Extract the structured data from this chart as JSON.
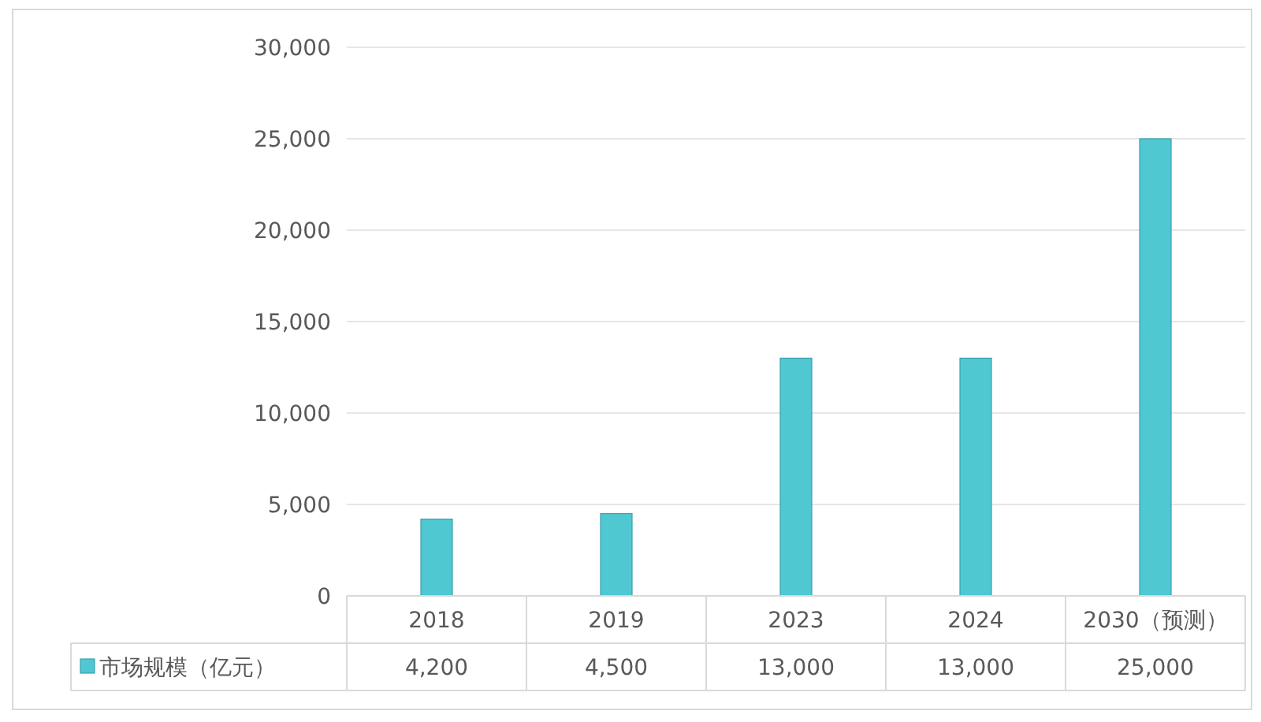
{
  "chart_data": {
    "type": "bar",
    "categories": [
      "2018",
      "2019",
      "2023",
      "2024",
      "2030（预测）"
    ],
    "series": [
      {
        "name": "市场规模（亿元）",
        "color": "#4fc8d2",
        "values": [
          4200,
          4500,
          13000,
          13000,
          25000
        ],
        "value_labels": [
          "4,200",
          "4,500",
          "13,000",
          "13,000",
          "25,000"
        ]
      }
    ],
    "ylim": [
      0,
      30000
    ],
    "yticks": [
      0,
      {
        "value": 5000,
        "label": "5,000"
      },
      {
        "value": 10000,
        "label": "10,000"
      },
      {
        "value": 15000,
        "label": "15,000"
      },
      {
        "value": 20000,
        "label": "20,000"
      },
      {
        "value": 25000,
        "label": "25,000"
      },
      {
        "value": 30000,
        "label": "30,000"
      }
    ],
    "grid": "y",
    "legend": "bottom"
  }
}
